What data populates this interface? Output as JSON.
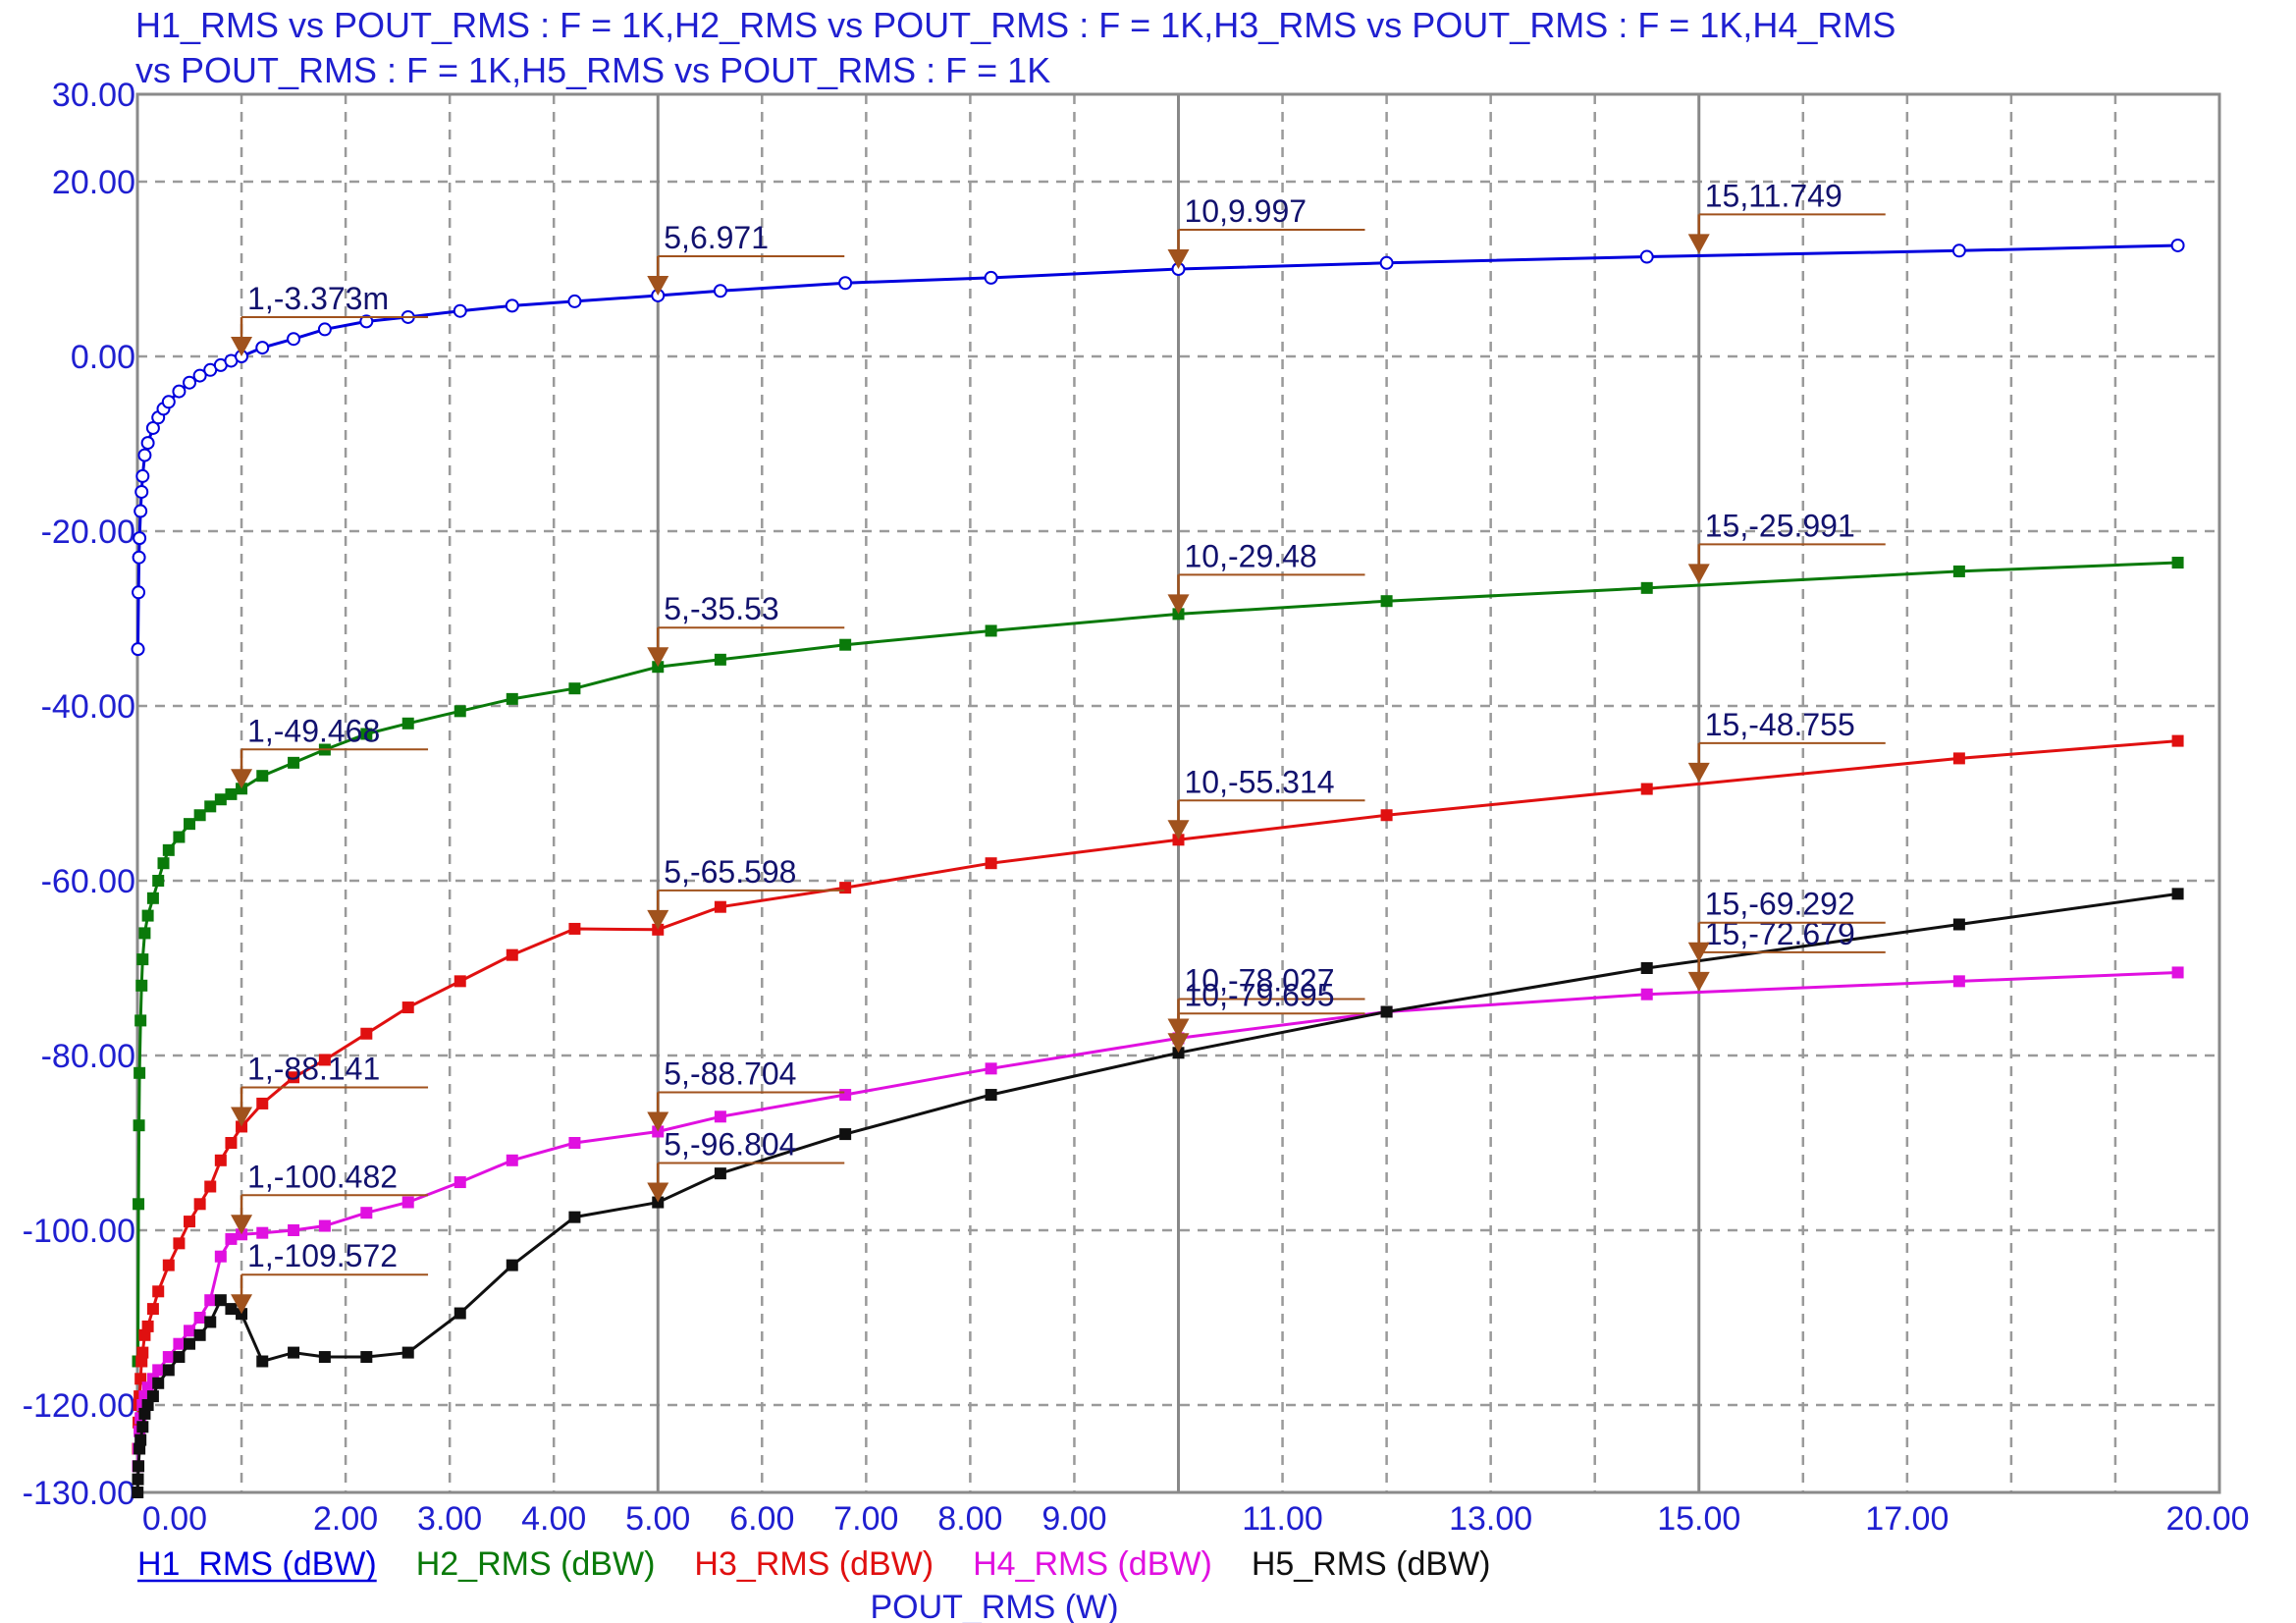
{
  "chart_data": {
    "type": "line",
    "title_lines": [
      "H1_RMS vs POUT_RMS : F = 1K,H2_RMS vs POUT_RMS : F = 1K,H3_RMS vs POUT_RMS : F = 1K,H4_RMS",
      "vs POUT_RMS : F = 1K,H5_RMS vs POUT_RMS : F = 1K"
    ],
    "xlabel": "POUT_RMS (W)",
    "x_ticks": [
      "0.00",
      "2.00",
      "3.00",
      "4.00",
      "5.00",
      "6.00",
      "7.00",
      "8.00",
      "9.00",
      "11.00",
      "13.00",
      "15.00",
      "17.00",
      "20.00"
    ],
    "x_tick_values": [
      0,
      2,
      3,
      4,
      5,
      6,
      7,
      8,
      9,
      11,
      13,
      15,
      17,
      20
    ],
    "y_ticks": [
      "30.00",
      "20.00",
      "0.00",
      "-20.00",
      "-40.00",
      "-60.00",
      "-80.00",
      "-100.00",
      "-120.00",
      "-130.00"
    ],
    "y_tick_values": [
      30,
      20,
      0,
      -20,
      -40,
      -60,
      -80,
      -100,
      -120,
      -130
    ],
    "xlim": [
      0,
      20
    ],
    "ylim": [
      -130,
      30
    ],
    "grid": true,
    "legend_position": "bottom",
    "colors": {
      "axis_text": "#1f1fd0",
      "grid": "#9a9a9a",
      "annotation": "#a0521d",
      "annotation_text": "#12126e"
    },
    "series": [
      {
        "name": "H1_RMS (dBW)",
        "color": "#0000dd",
        "marker": "open-circle",
        "x": [
          0.005,
          0.01,
          0.015,
          0.02,
          0.03,
          0.04,
          0.05,
          0.07,
          0.1,
          0.15,
          0.2,
          0.25,
          0.3,
          0.4,
          0.5,
          0.6,
          0.7,
          0.8,
          0.9,
          1.0,
          1.2,
          1.5,
          1.8,
          2.2,
          2.6,
          3.1,
          3.6,
          4.2,
          5.0,
          5.6,
          6.8,
          8.2,
          10.0,
          12.0,
          14.5,
          17.5,
          19.6
        ],
        "y": [
          -33.5,
          -27.0,
          -23.0,
          -20.8,
          -17.7,
          -15.5,
          -13.7,
          -11.3,
          -9.9,
          -8.2,
          -7.0,
          -6.0,
          -5.2,
          -4.0,
          -3.0,
          -2.2,
          -1.55,
          -1.0,
          -0.5,
          -0.003,
          1.0,
          2.0,
          3.1,
          4.0,
          4.5,
          5.2,
          5.8,
          6.3,
          6.97,
          7.5,
          8.4,
          9.0,
          10.0,
          10.7,
          11.4,
          12.1,
          12.7
        ]
      },
      {
        "name": "H2_RMS (dBW)",
        "color": "#0a7a0a",
        "marker": "square",
        "x": [
          0.005,
          0.01,
          0.015,
          0.02,
          0.03,
          0.04,
          0.05,
          0.07,
          0.1,
          0.15,
          0.2,
          0.25,
          0.3,
          0.4,
          0.5,
          0.6,
          0.7,
          0.8,
          0.9,
          1.0,
          1.2,
          1.5,
          1.8,
          2.2,
          2.6,
          3.1,
          3.6,
          4.2,
          5.0,
          5.6,
          6.8,
          8.2,
          10.0,
          12.0,
          14.5,
          17.5,
          19.6
        ],
        "y": [
          -115.0,
          -97.0,
          -88.0,
          -82.0,
          -76.0,
          -72.0,
          -69.0,
          -66.0,
          -64.0,
          -62.0,
          -60.0,
          -58.0,
          -56.5,
          -55.0,
          -53.5,
          -52.5,
          -51.5,
          -50.7,
          -50.1,
          -49.468,
          -48.0,
          -46.5,
          -45.0,
          -43.2,
          -42.0,
          -40.6,
          -39.2,
          -38.0,
          -35.53,
          -34.7,
          -33.0,
          -31.4,
          -29.48,
          -28.0,
          -26.5,
          -24.6,
          -23.6
        ]
      },
      {
        "name": "H3_RMS (dBW)",
        "color": "#e01010",
        "marker": "square",
        "x": [
          0.005,
          0.01,
          0.015,
          0.02,
          0.03,
          0.04,
          0.05,
          0.07,
          0.1,
          0.15,
          0.2,
          0.3,
          0.4,
          0.5,
          0.6,
          0.7,
          0.8,
          0.9,
          1.0,
          1.2,
          1.5,
          1.8,
          2.2,
          2.6,
          3.1,
          3.6,
          4.2,
          5.0,
          5.6,
          6.8,
          8.2,
          10.0,
          12.0,
          14.5,
          17.5,
          19.6
        ],
        "y": [
          -125.0,
          -122.0,
          -120.0,
          -119.0,
          -117.0,
          -115.0,
          -114.0,
          -112.0,
          -111.0,
          -109.0,
          -107.0,
          -104.0,
          -101.5,
          -99.0,
          -97.0,
          -95.0,
          -92.0,
          -90.0,
          -88.141,
          -85.5,
          -82.5,
          -80.5,
          -77.5,
          -74.5,
          -71.5,
          -68.5,
          -65.5,
          -65.598,
          -63.0,
          -60.8,
          -58.0,
          -55.314,
          -52.5,
          -49.5,
          -46.0,
          -44.0
        ]
      },
      {
        "name": "H4_RMS (dBW)",
        "color": "#e010e0",
        "marker": "square",
        "x": [
          0.005,
          0.01,
          0.02,
          0.03,
          0.05,
          0.07,
          0.1,
          0.15,
          0.2,
          0.3,
          0.4,
          0.5,
          0.6,
          0.7,
          0.8,
          0.9,
          1.0,
          1.2,
          1.5,
          1.8,
          2.2,
          2.6,
          3.1,
          3.6,
          4.2,
          5.0,
          5.6,
          6.8,
          8.2,
          10.0,
          12.0,
          14.5,
          17.5,
          19.6
        ],
        "y": [
          -127.0,
          -125.0,
          -123.0,
          -121.5,
          -120.0,
          -119.0,
          -118.0,
          -117.0,
          -116.0,
          -114.5,
          -113.0,
          -111.5,
          -110.0,
          -108.0,
          -103.0,
          -101.0,
          -100.482,
          -100.3,
          -100.0,
          -99.5,
          -98.0,
          -96.8,
          -94.5,
          -92.0,
          -90.0,
          -88.704,
          -87.0,
          -84.5,
          -81.5,
          -78.027,
          -75.0,
          -73.0,
          -71.5,
          -70.5
        ]
      },
      {
        "name": "H5_RMS (dBW)",
        "color": "#101010",
        "marker": "square",
        "x": [
          0.002,
          0.005,
          0.01,
          0.02,
          0.03,
          0.05,
          0.07,
          0.1,
          0.15,
          0.2,
          0.3,
          0.4,
          0.5,
          0.6,
          0.7,
          0.8,
          0.9,
          1.0,
          1.2,
          1.5,
          1.8,
          2.2,
          2.6,
          3.1,
          3.6,
          4.2,
          5.0,
          5.6,
          6.8,
          8.2,
          10.0,
          12.0,
          14.5,
          17.5,
          19.6
        ],
        "y": [
          -130.0,
          -128.5,
          -127.0,
          -125.0,
          -124.0,
          -122.5,
          -121.0,
          -120.0,
          -119.0,
          -117.5,
          -116.0,
          -114.5,
          -113.0,
          -112.0,
          -110.5,
          -108.0,
          -109.0,
          -109.572,
          -115.0,
          -114.0,
          -114.5,
          -114.5,
          -114.0,
          -109.5,
          -104.0,
          -98.5,
          -96.804,
          -93.5,
          -89.0,
          -84.5,
          -79.695,
          -75.0,
          -70.0,
          -65.0,
          -61.5
        ]
      }
    ],
    "annotations": [
      {
        "x": 1,
        "y": -0.003373,
        "label": "1,-3.373m"
      },
      {
        "x": 5,
        "y": 6.971,
        "label": "5,6.971"
      },
      {
        "x": 10,
        "y": 9.997,
        "label": "10,9.997"
      },
      {
        "x": 15,
        "y": 11.749,
        "label": "15,11.749"
      },
      {
        "x": 1,
        "y": -49.468,
        "label": "1,-49.468"
      },
      {
        "x": 5,
        "y": -35.53,
        "label": "5,-35.53"
      },
      {
        "x": 10,
        "y": -29.48,
        "label": "10,-29.48"
      },
      {
        "x": 15,
        "y": -25.991,
        "label": "15,-25.991"
      },
      {
        "x": 1,
        "y": -88.141,
        "label": "1,-88.141"
      },
      {
        "x": 5,
        "y": -65.598,
        "label": "5,-65.598"
      },
      {
        "x": 10,
        "y": -55.314,
        "label": "10,-55.314"
      },
      {
        "x": 15,
        "y": -48.755,
        "label": "15,-48.755"
      },
      {
        "x": 1,
        "y": -100.482,
        "label": "1,-100.482"
      },
      {
        "x": 5,
        "y": -88.704,
        "label": "5,-88.704"
      },
      {
        "x": 10,
        "y": -78.027,
        "label": "10,-78.027"
      },
      {
        "x": 15,
        "y": -72.679,
        "label": "15,-72.679"
      },
      {
        "x": 1,
        "y": -109.572,
        "label": "1,-109.572"
      },
      {
        "x": 5,
        "y": -96.804,
        "label": "5,-96.804"
      },
      {
        "x": 10,
        "y": -79.695,
        "label": "10,-79.695"
      },
      {
        "x": 15,
        "y": -69.292,
        "label": "15,-69.292"
      }
    ]
  }
}
